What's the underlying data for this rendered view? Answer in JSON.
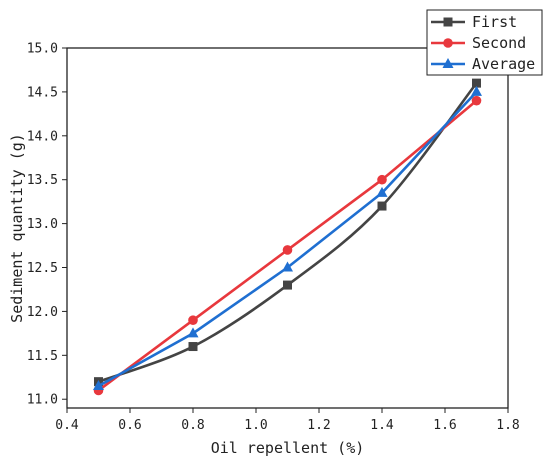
{
  "chart_data": {
    "type": "line",
    "xlabel": "Oil repellent (%)",
    "ylabel": "Sediment quantity (g)",
    "xlim": [
      0.4,
      1.8
    ],
    "ylim": [
      10.9,
      15.0
    ],
    "xticks": [
      "0.4",
      "0.6",
      "0.8",
      "1.0",
      "1.2",
      "1.4",
      "1.6",
      "1.8"
    ],
    "yticks": [
      "11.0",
      "11.5",
      "12.0",
      "12.5",
      "13.0",
      "13.5",
      "14.0",
      "14.5",
      "15.0"
    ],
    "x": [
      0.5,
      0.8,
      1.1,
      1.4,
      1.7
    ],
    "series": [
      {
        "name": "First",
        "color": "#444444",
        "marker": "square",
        "smooth": true,
        "values": [
          11.2,
          11.6,
          12.3,
          13.2,
          14.6
        ]
      },
      {
        "name": "Second",
        "color": "#e8383d",
        "marker": "circle",
        "smooth": false,
        "values": [
          11.1,
          11.9,
          12.7,
          13.5,
          14.4
        ]
      },
      {
        "name": "Average",
        "color": "#1f6fd1",
        "marker": "triangle",
        "smooth": false,
        "values": [
          11.15,
          11.75,
          12.5,
          13.35,
          14.5
        ]
      }
    ],
    "legend_position": "top-right",
    "grid": false
  }
}
